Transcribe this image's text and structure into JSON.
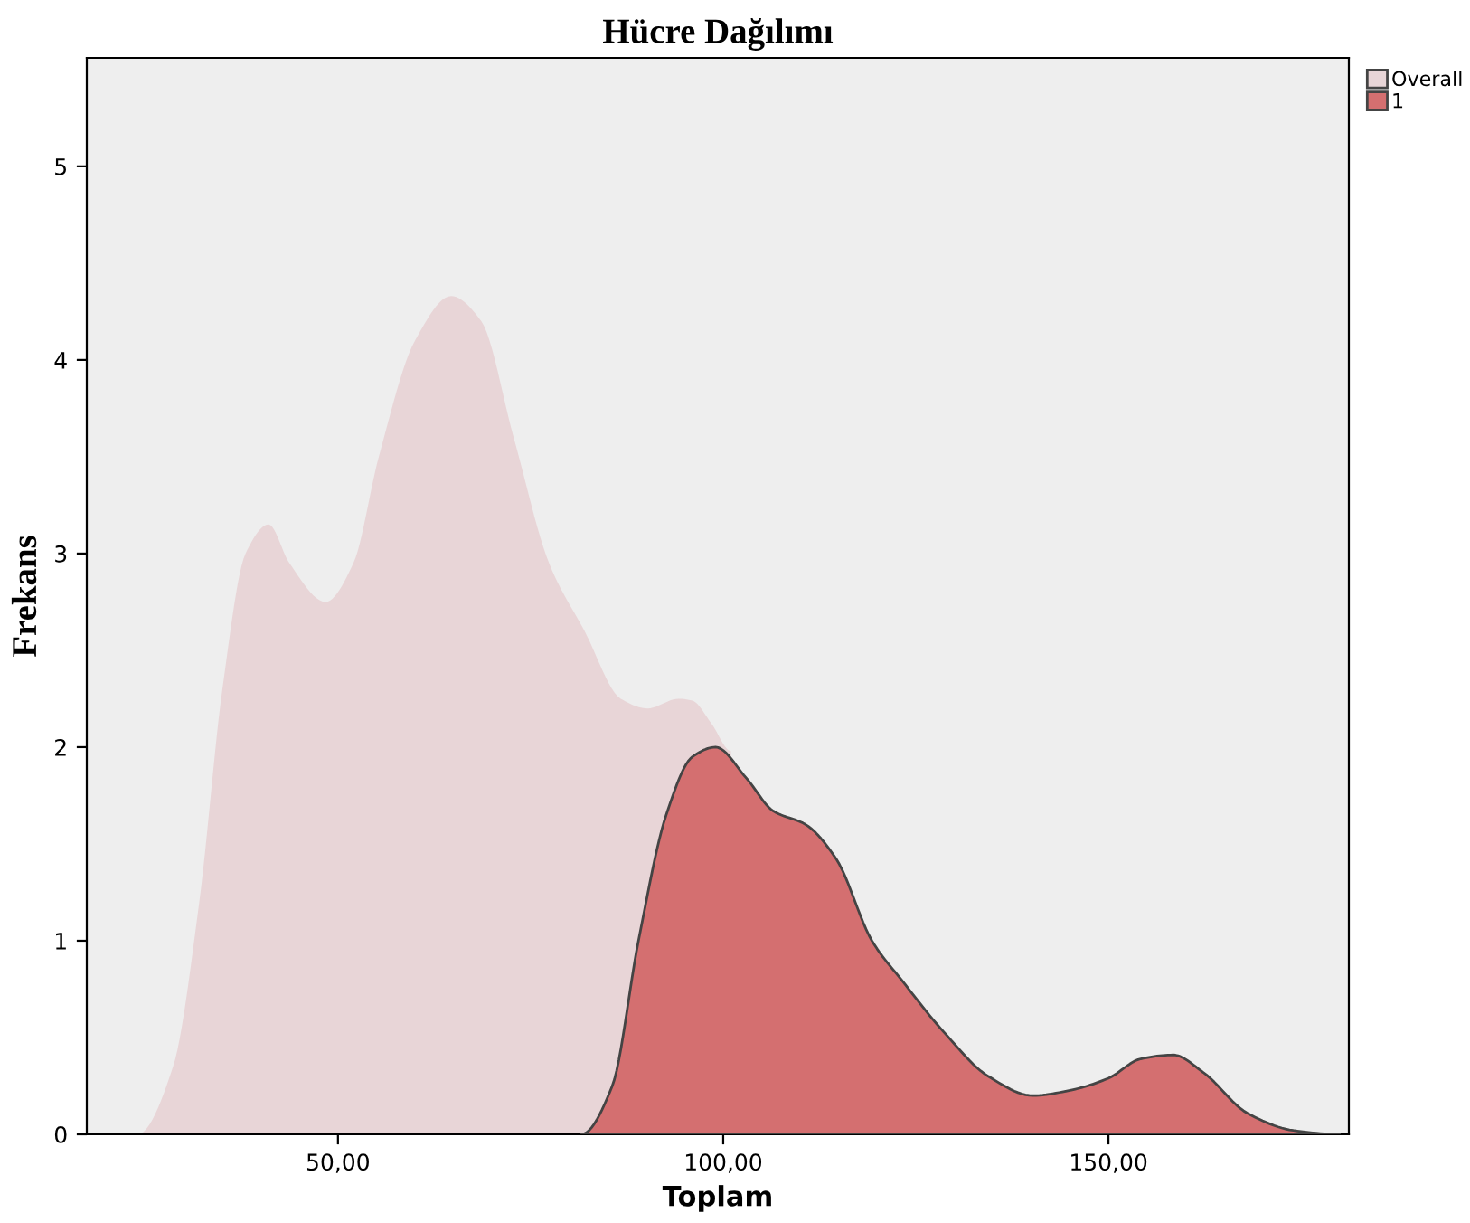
{
  "chart_data": {
    "type": "area",
    "title": "Hücre Dağılımı",
    "xlabel": "Toplam",
    "ylabel": "Frekans",
    "xlim": [
      17.4,
      181.2
    ],
    "ylim": [
      0,
      5.56
    ],
    "xticks": [
      {
        "value": 50,
        "label": "50,00"
      },
      {
        "value": 100,
        "label": "100,00"
      },
      {
        "value": 150,
        "label": "150,00"
      }
    ],
    "yticks": [
      0,
      1,
      2,
      3,
      4,
      5
    ],
    "grid": false,
    "legend": "top right",
    "series": [
      {
        "name": "Overall",
        "color": "#e8d5d7",
        "x": [
          24,
          28.6,
          32,
          35,
          38,
          41,
          43.7,
          48.4,
          52,
          55.3,
          60,
          64.7,
          68.6,
          72.8,
          77.4,
          82,
          86.7,
          90.2,
          94.2,
          96,
          98.5,
          101
        ],
        "values": [
          0,
          0.35,
          1.2,
          2.3,
          3.0,
          3.15,
          2.95,
          2.75,
          2.95,
          3.5,
          4.1,
          4.33,
          4.2,
          3.6,
          2.95,
          2.6,
          2.25,
          2.2,
          2.25,
          2.24,
          2.12,
          1.98
        ]
      },
      {
        "name": "1",
        "color": "#d46f70",
        "x": [
          81.6,
          85.6,
          89,
          92.6,
          96,
          99,
          103,
          106.5,
          110.7,
          114.7,
          119.3,
          123.3,
          128.6,
          134.4,
          140.2,
          145.3,
          150,
          154.2,
          158.4,
          162.3,
          168,
          174,
          180
        ],
        "values": [
          0,
          0.25,
          1.0,
          1.65,
          1.95,
          2.0,
          1.84,
          1.67,
          1.6,
          1.42,
          1.0,
          0.79,
          0.53,
          0.3,
          0.2,
          0.23,
          0.29,
          0.39,
          0.41,
          0.32,
          0.11,
          0.02,
          0
        ]
      }
    ]
  }
}
